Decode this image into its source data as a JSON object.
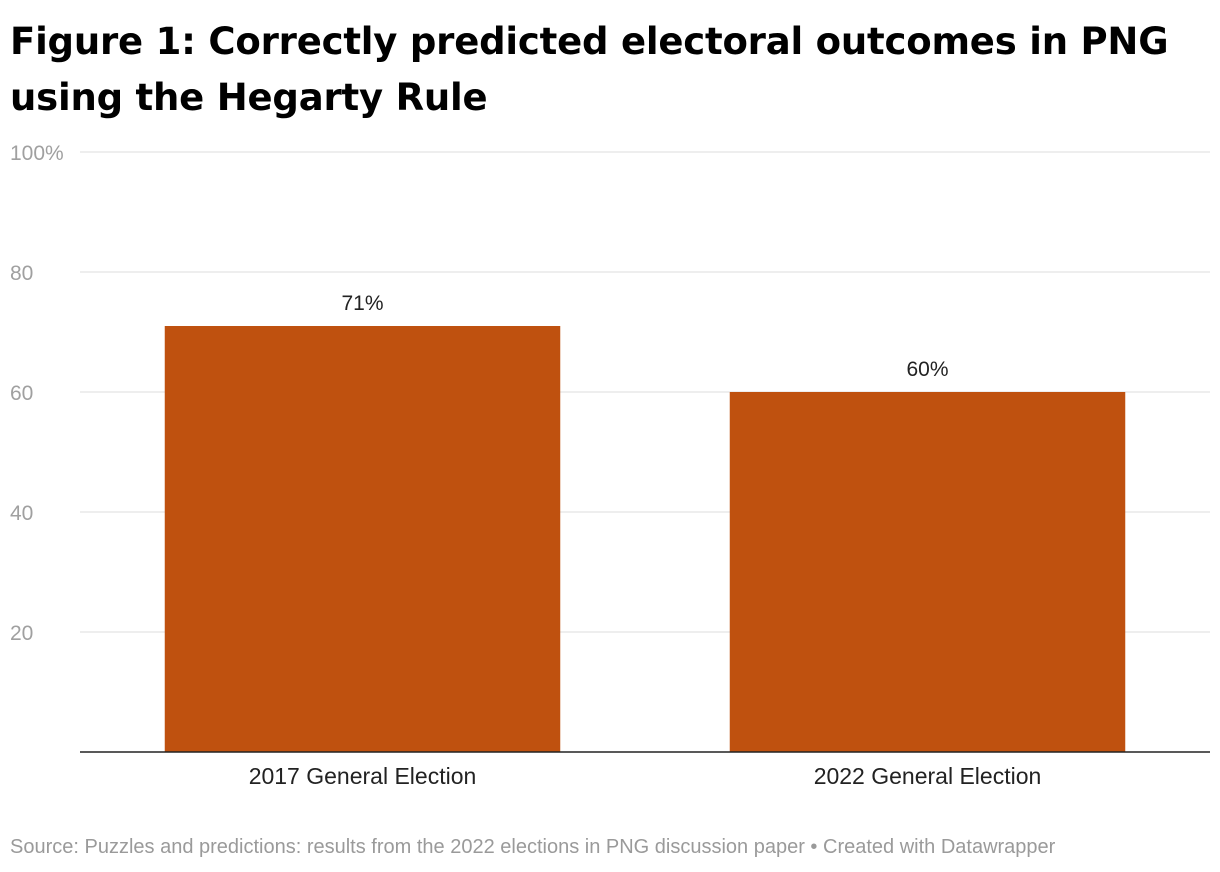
{
  "header": {
    "title_line1": "Figure 1: Correctly predicted electoral outcomes in PNG",
    "title_line2": "using the Hegarty Rule"
  },
  "footer": {
    "source": "Source: Puzzles and predictions: results from the 2022 elections in PNG discussion paper",
    "separator": "•",
    "credit": "Created with Datawrapper"
  },
  "chart_data": {
    "type": "bar",
    "title": "Figure 1: Correctly predicted electoral outcomes in PNG using the Hegarty Rule",
    "categories": [
      "2017 General Election",
      "2022 General Election"
    ],
    "values": [
      71,
      60
    ],
    "value_labels": [
      "71%",
      "60%"
    ],
    "xlabel": "",
    "ylabel": "",
    "ylim": [
      0,
      100
    ],
    "yticks": [
      20,
      40,
      60,
      80,
      100
    ],
    "ytick_labels": [
      "20",
      "40",
      "60",
      "80",
      "100%"
    ],
    "grid": true,
    "bar_color": "#bf510f"
  }
}
